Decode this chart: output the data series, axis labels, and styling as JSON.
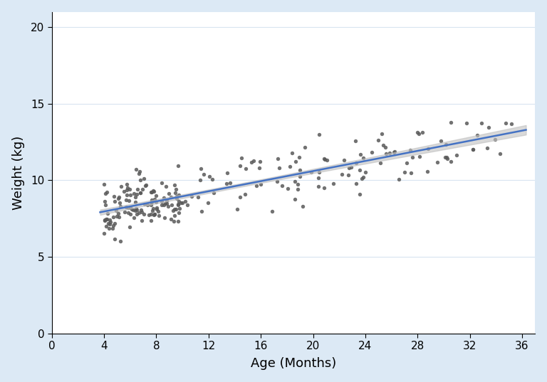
{
  "title": "",
  "xlabel": "Age (Months)",
  "ylabel": "Weight (kg)",
  "xlim": [
    0,
    37
  ],
  "ylim": [
    0,
    21
  ],
  "xticks": [
    0,
    4,
    8,
    12,
    16,
    20,
    24,
    28,
    32,
    36
  ],
  "yticks": [
    0,
    5,
    10,
    15,
    20
  ],
  "background_color": "#dce9f5",
  "plot_background_color": "#ffffff",
  "scatter_color": "#595959",
  "line_color": "#4472c4",
  "ci_color": "#c0c0c0",
  "ci_alpha": 0.6,
  "regression_intercept": 7.3,
  "regression_slope": 0.165,
  "seed": 12,
  "n_points": 250,
  "age_min": 4,
  "age_max": 36,
  "noise_std": 0.9,
  "scatter_size": 15,
  "scatter_alpha": 0.85,
  "tick_fontsize": 11,
  "label_fontsize": 13
}
